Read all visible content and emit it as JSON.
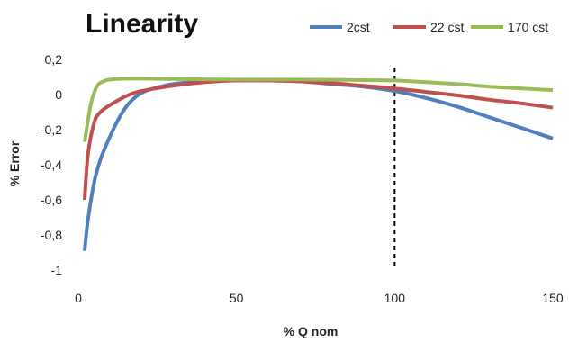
{
  "chart_data": {
    "type": "line",
    "title": "Linearity",
    "xlabel": "% Q nom",
    "ylabel": "% Error",
    "xlim": [
      0,
      150
    ],
    "ylim": [
      -1,
      0.2
    ],
    "x_ticks": [
      0,
      50,
      100,
      150
    ],
    "x_tick_labels": [
      "0",
      "50",
      "100",
      "150"
    ],
    "y_ticks": [
      0.2,
      0,
      -0.2,
      -0.4,
      -0.6,
      -0.8,
      -1
    ],
    "y_tick_labels": [
      "0,2",
      "0",
      "-0,2",
      "-0,4",
      "-0,6",
      "-0,8",
      "-1"
    ],
    "grid": false,
    "legend_position": "top-right",
    "reference_line": {
      "x": 100,
      "style": "dashed",
      "color": "#000000"
    },
    "series": [
      {
        "name": "2cst",
        "color": "#4f7fbd",
        "x": [
          2,
          3,
          5,
          7,
          10,
          13,
          16,
          20,
          25,
          30,
          40,
          50,
          60,
          70,
          80,
          90,
          100,
          110,
          120,
          130,
          140,
          150
        ],
        "y": [
          -0.89,
          -0.72,
          -0.5,
          -0.37,
          -0.24,
          -0.13,
          -0.05,
          0.01,
          0.04,
          0.06,
          0.075,
          0.08,
          0.08,
          0.075,
          0.06,
          0.045,
          0.02,
          -0.02,
          -0.07,
          -0.13,
          -0.19,
          -0.25
        ]
      },
      {
        "name": "22 cst",
        "color": "#c0504d",
        "x": [
          2,
          3,
          5,
          7,
          10,
          15,
          20,
          30,
          40,
          50,
          60,
          70,
          80,
          90,
          100,
          110,
          120,
          130,
          140,
          150
        ],
        "y": [
          -0.6,
          -0.35,
          -0.16,
          -0.1,
          -0.06,
          -0.01,
          0.02,
          0.05,
          0.07,
          0.08,
          0.08,
          0.075,
          0.065,
          0.05,
          0.035,
          0.015,
          -0.005,
          -0.03,
          -0.05,
          -0.075
        ]
      },
      {
        "name": "170 cst",
        "color": "#9bbb59",
        "x": [
          2,
          4,
          6,
          8,
          10,
          15,
          20,
          30,
          50,
          70,
          90,
          100,
          110,
          120,
          130,
          140,
          150
        ],
        "y": [
          -0.27,
          -0.05,
          0.05,
          0.075,
          0.085,
          0.09,
          0.09,
          0.088,
          0.085,
          0.085,
          0.082,
          0.08,
          0.07,
          0.06,
          0.045,
          0.035,
          0.025
        ]
      }
    ]
  }
}
